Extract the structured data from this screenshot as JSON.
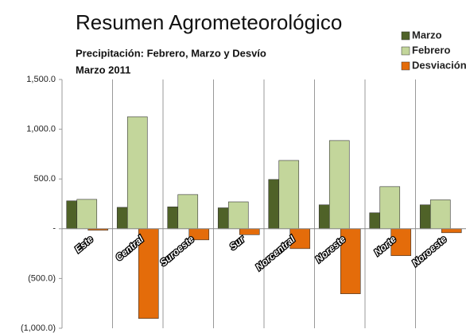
{
  "chart_data": {
    "type": "bar",
    "title": "Resumen Agrometeorológico",
    "subtitle": "Precipitación: Febrero, Marzo y Desvío",
    "subtitle2": "Marzo 2011",
    "categories": [
      "Este",
      "Central",
      "Suroeste",
      "Sur",
      "Norcentral",
      "Noreste",
      "Norte",
      "Noroeste"
    ],
    "series": [
      {
        "name": "Marzo",
        "color": "#4f6228",
        "values": [
          280,
          215,
          220,
          210,
          495,
          240,
          160,
          240
        ]
      },
      {
        "name": "Febrero",
        "color": "#c3d69b",
        "values": [
          295,
          1125,
          343,
          270,
          686,
          886,
          423,
          290
        ]
      },
      {
        "name": "Desviación",
        "color": "#e46c0a",
        "values": [
          -15,
          -902,
          -112,
          -60,
          -200,
          -654,
          -271,
          -40
        ]
      }
    ],
    "ylim": [
      -1000,
      1500
    ],
    "yticks": [
      {
        "value": 1500,
        "label": "1,500.0"
      },
      {
        "value": 1000,
        "label": "1,000.0"
      },
      {
        "value": 500,
        "label": "500.0"
      },
      {
        "value": 0,
        "label": "-"
      },
      {
        "value": -500,
        "label": "(500.0)"
      },
      {
        "value": -1000,
        "label": "(1,000.0)"
      }
    ],
    "legend": "top-right"
  }
}
